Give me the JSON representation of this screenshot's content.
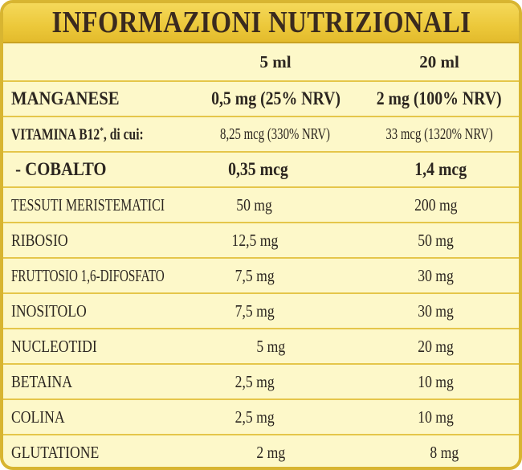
{
  "title": "INFORMAZIONI NUTRIZIONALI",
  "columns": {
    "dose1": "5 ml",
    "dose2": "20 ml"
  },
  "rows": [
    {
      "name": "MANGANESE",
      "v1": "0,5 mg (25% NRV)",
      "v2": "2 mg (100% NRV)"
    },
    {
      "name": "VITAMINA B12",
      "name_mark": "*",
      "name_suffix": ", di cui:",
      "v1": "8,25 mcg (330% NRV)",
      "v2": "33 mcg (1320% NRV)"
    },
    {
      "name": " - COBALTO",
      "v1": "0,35 mcg",
      "v2": "1,4 mcg"
    },
    {
      "name": "TESSUTI MERISTEMATICI",
      "v1": "50 mg",
      "v2": "200 mg"
    },
    {
      "name": "RIBOSIO",
      "v1": "12,5 mg",
      "v2": "50 mg"
    },
    {
      "name": "FRUTTOSIO 1,6-DIFOSFATO",
      "v1": "7,5 mg",
      "v2": "30 mg"
    },
    {
      "name": "INOSITOLO",
      "v1": "7,5 mg",
      "v2": "30 mg"
    },
    {
      "name": "NUCLEOTIDI",
      "v1": "5 mg",
      "v2": "20 mg"
    },
    {
      "name": "BETAINA",
      "v1": "2,5 mg",
      "v2": "10 mg"
    },
    {
      "name": "COLINA",
      "v1": "2,5 mg",
      "v2": "10 mg"
    },
    {
      "name": "GLUTATIONE",
      "v1": "2 mg",
      "v2": "8 mg"
    }
  ],
  "colors": {
    "panel_background": "#fdf8c9",
    "border_gold": "#d8b531",
    "title_bar": "#ecc83a",
    "text": "#2c2620"
  }
}
